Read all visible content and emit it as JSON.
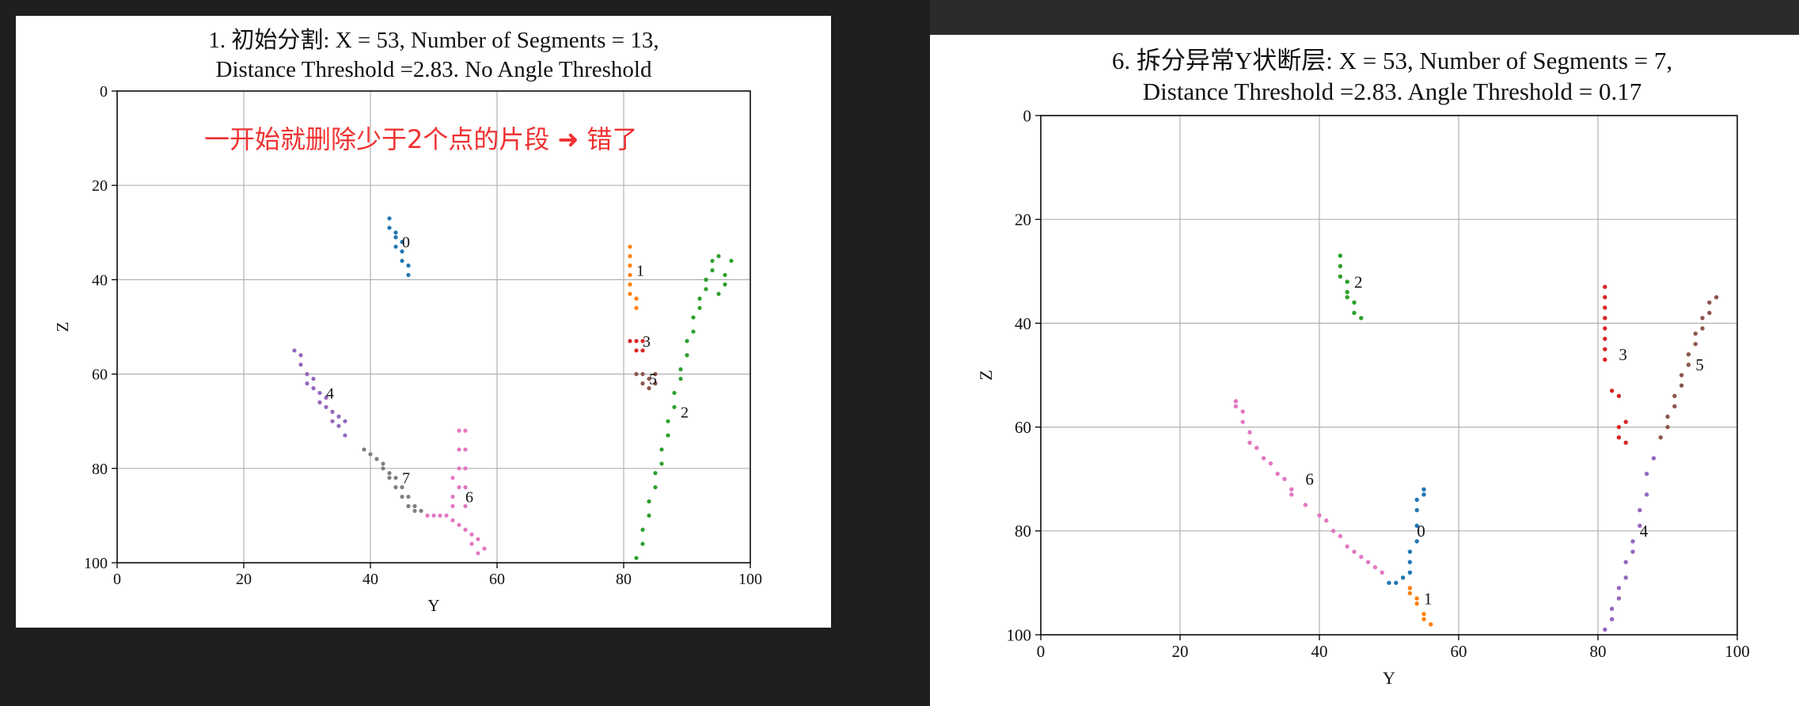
{
  "chart_data": [
    {
      "id": "left",
      "type": "scatter",
      "title_line1": "1. 初始分割: X = 53, Number of Segments = 13,",
      "title_line2": "Distance Threshold =2.83. No Angle Threshold",
      "xlabel": "Y",
      "ylabel": "Z",
      "xlim": [
        0,
        100
      ],
      "ylim": [
        0,
        100
      ],
      "y_inverted": true,
      "grid": true,
      "xticks": [
        0,
        20,
        40,
        60,
        80,
        100
      ],
      "yticks": [
        0,
        20,
        40,
        60,
        80,
        100
      ],
      "note": "一开始就删除少于2个点的片段 ➜ 错了",
      "note_color": "#f03030",
      "series": [
        {
          "label": "0",
          "color": "#1f77b4",
          "label_pos": [
            45,
            32
          ],
          "x": [
            43,
            43,
            44,
            44,
            44,
            45,
            45,
            45,
            46,
            46
          ],
          "y": [
            27,
            29,
            31,
            30,
            33,
            32,
            34,
            36,
            37,
            39
          ]
        },
        {
          "label": "1",
          "color": "#ff7f0e",
          "label_pos": [
            82,
            38
          ],
          "x": [
            81,
            81,
            81,
            81,
            81,
            81,
            82,
            82
          ],
          "y": [
            33,
            35,
            37,
            39,
            41,
            43,
            44,
            46
          ]
        },
        {
          "label": "2",
          "color": "#2ca02c",
          "label_pos": [
            89,
            68
          ],
          "x": [
            82,
            83,
            83,
            84,
            84,
            85,
            85,
            86,
            86,
            87,
            87,
            88,
            88,
            89,
            89,
            90,
            90,
            91,
            91,
            92,
            92,
            93,
            93,
            94,
            94,
            95,
            95,
            96,
            96,
            97
          ],
          "y": [
            99,
            96,
            93,
            90,
            87,
            84,
            81,
            79,
            76,
            73,
            70,
            67,
            64,
            61,
            59,
            56,
            53,
            51,
            48,
            46,
            44,
            42,
            40,
            38,
            36,
            35,
            43,
            41,
            39,
            36
          ]
        },
        {
          "label": "3",
          "color": "#d62728",
          "label_pos": [
            83,
            53
          ],
          "x": [
            81,
            82,
            83,
            83,
            82
          ],
          "y": [
            53,
            53,
            53,
            55,
            55
          ]
        },
        {
          "label": "5",
          "color": "#8c564b",
          "label_pos": [
            84,
            61
          ],
          "x": [
            82,
            83,
            83,
            84,
            84,
            85,
            85
          ],
          "y": [
            60,
            60,
            62,
            61,
            63,
            60,
            62
          ]
        },
        {
          "label": "4",
          "color": "#9467bd",
          "label_pos": [
            33,
            64
          ],
          "x": [
            28,
            29,
            29,
            30,
            30,
            31,
            31,
            32,
            32,
            33,
            33,
            34,
            34,
            35,
            35,
            36,
            36
          ],
          "y": [
            55,
            56,
            58,
            60,
            62,
            61,
            63,
            64,
            66,
            65,
            67,
            68,
            70,
            69,
            71,
            70,
            73
          ]
        },
        {
          "label": "7",
          "color": "#7f7f7f",
          "label_pos": [
            45,
            82
          ],
          "x": [
            39,
            40,
            41,
            42,
            42,
            43,
            43,
            44,
            44,
            45,
            45,
            46,
            46,
            47,
            47,
            48
          ],
          "y": [
            76,
            77,
            78,
            79,
            80,
            81,
            82,
            82,
            84,
            84,
            86,
            86,
            88,
            88,
            89,
            89
          ]
        },
        {
          "label": "6",
          "color": "#e377c2",
          "label_pos": [
            55,
            86
          ],
          "x": [
            49,
            50,
            51,
            52,
            53,
            53,
            53,
            53,
            54,
            54,
            54,
            54,
            54,
            55,
            55,
            55,
            55,
            55,
            55,
            56,
            56,
            57,
            57,
            58
          ],
          "y": [
            90,
            90,
            90,
            90,
            82,
            86,
            88,
            91,
            72,
            76,
            80,
            84,
            92,
            72,
            76,
            80,
            84,
            88,
            93,
            94,
            96,
            95,
            98,
            97
          ]
        }
      ]
    },
    {
      "id": "right",
      "type": "scatter",
      "title_line1": "6. 拆分异常Y状断层: X = 53, Number of Segments = 7,",
      "title_line2": "Distance Threshold =2.83. Angle Threshold = 0.17",
      "xlabel": "Y",
      "ylabel": "Z",
      "xlim": [
        0,
        100
      ],
      "ylim": [
        0,
        100
      ],
      "y_inverted": true,
      "grid": true,
      "xticks": [
        0,
        20,
        40,
        60,
        80,
        100
      ],
      "yticks": [
        0,
        20,
        40,
        60,
        80,
        100
      ],
      "series": [
        {
          "label": "2",
          "color": "#2ca02c",
          "label_pos": [
            45,
            32
          ],
          "x": [
            43,
            43,
            43,
            44,
            44,
            44,
            45,
            45,
            46
          ],
          "y": [
            27,
            29,
            31,
            32,
            34,
            35,
            36,
            38,
            39
          ]
        },
        {
          "label": "3",
          "color": "#d62728",
          "label_pos": [
            83,
            46
          ],
          "x": [
            81,
            81,
            81,
            81,
            81,
            81,
            81,
            81,
            82,
            83,
            83,
            83,
            84,
            84
          ],
          "y": [
            33,
            35,
            37,
            39,
            41,
            43,
            45,
            47,
            53,
            54,
            60,
            62,
            59,
            63
          ]
        },
        {
          "label": "5",
          "color": "#8c564b",
          "label_pos": [
            94,
            48
          ],
          "x": [
            89,
            90,
            90,
            91,
            91,
            92,
            92,
            93,
            93,
            94,
            94,
            95,
            95,
            96,
            96,
            97
          ],
          "y": [
            62,
            60,
            58,
            56,
            54,
            52,
            50,
            48,
            46,
            44,
            42,
            41,
            39,
            38,
            36,
            35
          ]
        },
        {
          "label": "6",
          "color": "#e377c2",
          "label_pos": [
            38,
            70
          ],
          "x": [
            28,
            28,
            29,
            29,
            30,
            30,
            31,
            32,
            33,
            34,
            35,
            36,
            36,
            38,
            40,
            41,
            42,
            43,
            44,
            45,
            46,
            47,
            48,
            49
          ],
          "y": [
            55,
            56,
            57,
            59,
            61,
            63,
            64,
            66,
            67,
            69,
            70,
            72,
            73,
            75,
            77,
            78,
            80,
            81,
            83,
            84,
            85,
            86,
            87,
            88
          ]
        },
        {
          "label": "0",
          "color": "#1f77b4",
          "label_pos": [
            54,
            80
          ],
          "x": [
            50,
            51,
            52,
            53,
            53,
            53,
            54,
            54,
            54,
            54,
            55,
            55
          ],
          "y": [
            90,
            90,
            89,
            88,
            86,
            84,
            82,
            79,
            76,
            74,
            73,
            72
          ]
        },
        {
          "label": "1",
          "color": "#ff7f0e",
          "label_pos": [
            55,
            93
          ],
          "x": [
            53,
            53,
            54,
            54,
            55,
            55,
            56
          ],
          "y": [
            91,
            92,
            93,
            94,
            96,
            97,
            98
          ]
        },
        {
          "label": "4",
          "color": "#9467bd",
          "label_pos": [
            86,
            80
          ],
          "x": [
            81,
            82,
            82,
            83,
            83,
            84,
            84,
            85,
            85,
            86,
            86,
            87,
            87,
            88
          ],
          "y": [
            99,
            97,
            95,
            93,
            91,
            89,
            86,
            84,
            82,
            79,
            76,
            73,
            69,
            66
          ]
        }
      ]
    }
  ]
}
